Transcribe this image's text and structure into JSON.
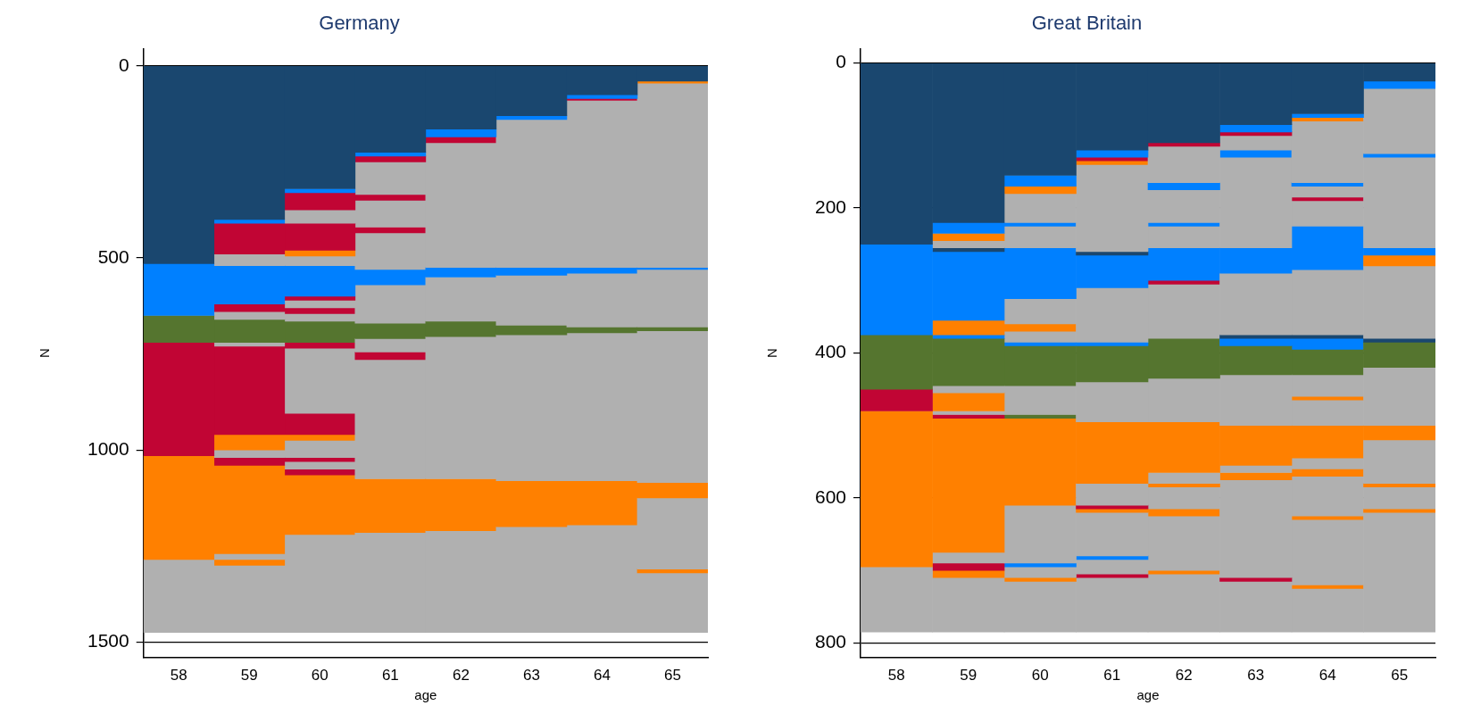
{
  "chart_data": [
    {
      "type": "bar",
      "title": "Germany",
      "xlabel": "age",
      "ylabel": "N",
      "categories": [
        "58",
        "59",
        "60",
        "61",
        "62",
        "63",
        "64",
        "65"
      ],
      "stacked": true,
      "ylim": [
        1540,
        -45
      ],
      "yticks": [
        0,
        500,
        1000,
        1500
      ],
      "grid": "y",
      "legend": false,
      "series": [
        {
          "values": [
            515,
            400,
            320,
            225,
            165,
            130,
            75,
            40
          ],
          "colors": [
            "#1a476f",
            "#1a476f",
            "#1a476f",
            "#1a476f",
            "#1a476f",
            "#1a476f",
            "#1a476f",
            "#1a476f"
          ]
        },
        {
          "values": [
            135,
            10,
            10,
            10,
            20,
            10,
            10,
            5
          ],
          "colors": [
            "#0080ff",
            "#0080ff",
            "#0080ff",
            "#0080ff",
            "#0080ff",
            "#0080ff",
            "#0080ff",
            "#ff8000"
          ]
        },
        {
          "values": [
            70,
            80,
            45,
            15,
            15,
            385,
            5,
            480
          ],
          "colors": [
            "#55752f",
            "#c10534",
            "#c10534",
            "#c10534",
            "#c10534",
            "#b0b0b0",
            "#c10534",
            "#b0b0b0"
          ]
        },
        {
          "values": [
            295,
            30,
            35,
            85,
            325,
            20,
            435,
            5
          ],
          "colors": [
            "#c10534",
            "#b0b0b0",
            "#b0b0b0",
            "#b0b0b0",
            "#b0b0b0",
            "#0080ff",
            "#b0b0b0",
            "#0080ff"
          ]
        },
        {
          "values": [
            270,
            100,
            70,
            15,
            25,
            130,
            15,
            150
          ],
          "colors": [
            "#ff8000",
            "#0080ff",
            "#c10534",
            "#c10534",
            "#0080ff",
            "#b0b0b0",
            "#0080ff",
            "#b0b0b0"
          ]
        },
        {
          "values": [
            190,
            20,
            15,
            70,
            115,
            25,
            140,
            10
          ],
          "colors": [
            "#b0b0b0",
            "#c10534",
            "#ff8000",
            "#b0b0b0",
            "#b0b0b0",
            "#55752f",
            "#b0b0b0",
            "#55752f"
          ]
        },
        {
          "values": [
            null,
            20,
            25,
            15,
            40,
            380,
            15,
            395
          ],
          "colors": [
            null,
            "#b0b0b0",
            "#b0b0b0",
            "#c10534",
            "#55752f",
            "#b0b0b0",
            "#55752f",
            "#b0b0b0"
          ]
        },
        {
          "values": [
            null,
            60,
            80,
            95,
            370,
            120,
            385,
            40
          ],
          "colors": [
            null,
            "#55752f",
            "#0080ff",
            "#b0b0b0",
            "#b0b0b0",
            "#ff8000",
            "#b0b0b0",
            "#ff8000"
          ]
        },
        {
          "values": [
            null,
            10,
            10,
            40,
            135,
            275,
            115,
            185
          ],
          "colors": [
            null,
            "#b0b0b0",
            "#c10534",
            "#0080ff",
            "#ff8000",
            "#b0b0b0",
            "#ff8000",
            "#b0b0b0"
          ]
        },
        {
          "values": [
            null,
            230,
            20,
            100,
            265,
            null,
            280,
            10
          ],
          "colors": [
            null,
            "#c10534",
            "#b0b0b0",
            "#b0b0b0",
            "#b0b0b0",
            null,
            "#b0b0b0",
            "#ff8000"
          ]
        },
        {
          "values": [
            null,
            40,
            15,
            40,
            null,
            null,
            null,
            155
          ],
          "colors": [
            null,
            "#ff8000",
            "#c10534",
            "#55752f",
            null,
            null,
            null,
            "#b0b0b0"
          ]
        },
        {
          "values": [
            null,
            20,
            20,
            35,
            null,
            null,
            null,
            null
          ],
          "colors": [
            null,
            "#b0b0b0",
            "#b0b0b0",
            "#b0b0b0",
            null,
            null,
            null,
            null
          ]
        },
        {
          "values": [
            null,
            20,
            55,
            20,
            null,
            null,
            null,
            null
          ],
          "colors": [
            null,
            "#c10534",
            "#55752f",
            "#c10534",
            null,
            null,
            null,
            null
          ]
        },
        {
          "values": [
            null,
            230,
            15,
            310,
            null,
            null,
            null,
            null
          ],
          "colors": [
            null,
            "#ff8000",
            "#c10534",
            "#b0b0b0",
            null,
            null,
            null,
            null
          ]
        },
        {
          "values": [
            null,
            15,
            170,
            140,
            null,
            null,
            null,
            null
          ],
          "colors": [
            null,
            "#b0b0b0",
            "#b0b0b0",
            "#ff8000",
            null,
            null,
            null,
            null
          ]
        },
        {
          "values": [
            null,
            15,
            55,
            260,
            null,
            null,
            null,
            null
          ],
          "colors": [
            null,
            "#ff8000",
            "#c10534",
            "#b0b0b0",
            null,
            null,
            null,
            null
          ]
        },
        {
          "values": [
            null,
            175,
            15,
            null,
            null,
            null,
            null,
            null
          ],
          "colors": [
            null,
            "#b0b0b0",
            "#ff8000",
            null,
            null,
            null,
            null,
            null
          ]
        },
        {
          "values": [
            null,
            null,
            45,
            null,
            null,
            null,
            null,
            null
          ],
          "colors": [
            null,
            null,
            "#b0b0b0",
            null,
            null,
            null,
            null,
            null
          ]
        },
        {
          "values": [
            null,
            null,
            10,
            null,
            null,
            null,
            null,
            null
          ],
          "colors": [
            null,
            null,
            "#c10534",
            null,
            null,
            null,
            null,
            null
          ]
        },
        {
          "values": [
            null,
            null,
            20,
            null,
            null,
            null,
            null,
            null
          ],
          "colors": [
            null,
            null,
            "#b0b0b0",
            null,
            null,
            null,
            null,
            null
          ]
        },
        {
          "values": [
            null,
            null,
            15,
            null,
            null,
            null,
            null,
            null
          ],
          "colors": [
            null,
            null,
            "#c10534",
            null,
            null,
            null,
            null,
            null
          ]
        },
        {
          "values": [
            null,
            null,
            155,
            null,
            null,
            null,
            null,
            null
          ],
          "colors": [
            null,
            null,
            "#ff8000",
            null,
            null,
            null,
            null,
            null
          ]
        },
        {
          "values": [
            null,
            null,
            255,
            null,
            null,
            null,
            null,
            null
          ],
          "colors": [
            null,
            null,
            "#b0b0b0",
            null,
            null,
            null,
            null,
            null
          ]
        }
      ]
    },
    {
      "type": "bar",
      "title": "Great Britain",
      "xlabel": "age",
      "ylabel": "N",
      "categories": [
        "58",
        "59",
        "60",
        "61",
        "62",
        "63",
        "64",
        "65"
      ],
      "stacked": true,
      "ylim": [
        820,
        -20
      ],
      "yticks": [
        0,
        200,
        400,
        600,
        800
      ],
      "grid": "y",
      "legend": false,
      "series": [
        {
          "values": [
            250,
            220,
            155,
            120,
            110,
            85,
            70,
            25
          ],
          "colors": [
            "#1a476f",
            "#1a476f",
            "#1a476f",
            "#1a476f",
            "#1a476f",
            "#1a476f",
            "#1a476f",
            "#1a476f"
          ]
        },
        {
          "values": [
            125,
            15,
            15,
            10,
            5,
            10,
            5,
            10
          ],
          "colors": [
            "#0080ff",
            "#0080ff",
            "#0080ff",
            "#0080ff",
            "#c10534",
            "#0080ff",
            "#0080ff",
            "#0080ff"
          ]
        },
        {
          "values": [
            75,
            10,
            10,
            5,
            50,
            5,
            5,
            90
          ],
          "colors": [
            "#55752f",
            "#ff8000",
            "#ff8000",
            "#c10534",
            "#b0b0b0",
            "#c10534",
            "#ff8000",
            "#b0b0b0"
          ]
        },
        {
          "values": [
            30,
            10,
            40,
            5,
            10,
            20,
            85,
            5
          ],
          "colors": [
            "#c10534",
            "#b0b0b0",
            "#b0b0b0",
            "#ff8000",
            "#0080ff",
            "#b0b0b0",
            "#b0b0b0",
            "#0080ff"
          ]
        },
        {
          "values": [
            215,
            5,
            5,
            120,
            45,
            10,
            5,
            125
          ],
          "colors": [
            "#ff8000",
            "#1a476f",
            "#0080ff",
            "#b0b0b0",
            "#b0b0b0",
            "#0080ff",
            "#0080ff",
            "#b0b0b0"
          ]
        },
        {
          "values": [
            90,
            95,
            30,
            5,
            5,
            125,
            15,
            10
          ],
          "colors": [
            "#b0b0b0",
            "#0080ff",
            "#b0b0b0",
            "#1a476f",
            "#0080ff",
            "#b0b0b0",
            "#b0b0b0",
            "#0080ff"
          ]
        },
        {
          "values": [
            null,
            20,
            70,
            45,
            30,
            35,
            5,
            15
          ],
          "colors": [
            null,
            "#ff8000",
            "#0080ff",
            "#0080ff",
            "#b0b0b0",
            "#0080ff",
            "#c10534",
            "#ff8000"
          ]
        },
        {
          "values": [
            null,
            5,
            35,
            75,
            45,
            85,
            35,
            100
          ],
          "colors": [
            null,
            "#0080ff",
            "#b0b0b0",
            "#b0b0b0",
            "#0080ff",
            "#b0b0b0",
            "#b0b0b0",
            "#b0b0b0"
          ]
        },
        {
          "values": [
            null,
            65,
            10,
            5,
            5,
            5,
            60,
            5
          ],
          "colors": [
            null,
            "#55752f",
            "#ff8000",
            "#0080ff",
            "#c10534",
            "#1a476f",
            "#0080ff",
            "#1a476f"
          ]
        },
        {
          "values": [
            null,
            10,
            15,
            50,
            75,
            10,
            90,
            35
          ],
          "colors": [
            null,
            "#b0b0b0",
            "#b0b0b0",
            "#55752f",
            "#b0b0b0",
            "#0080ff",
            "#b0b0b0",
            "#55752f"
          ]
        },
        {
          "values": [
            null,
            25,
            5,
            55,
            55,
            40,
            5,
            80
          ],
          "colors": [
            null,
            "#ff8000",
            "#0080ff",
            "#b0b0b0",
            "#55752f",
            "#55752f",
            "#1a476f",
            "#b0b0b0"
          ]
        },
        {
          "values": [
            null,
            5,
            55,
            85,
            60,
            70,
            15,
            20
          ],
          "colors": [
            null,
            "#b0b0b0",
            "#55752f",
            "#ff8000",
            "#b0b0b0",
            "#b0b0b0",
            "#0080ff",
            "#ff8000"
          ]
        },
        {
          "values": [
            null,
            5,
            40,
            30,
            70,
            55,
            35,
            60
          ],
          "colors": [
            null,
            "#c10534",
            "#b0b0b0",
            "#b0b0b0",
            "#ff8000",
            "#ff8000",
            "#55752f",
            "#b0b0b0"
          ]
        },
        {
          "values": [
            null,
            185,
            5,
            5,
            15,
            10,
            30,
            5
          ],
          "colors": [
            null,
            "#ff8000",
            "#55752f",
            "#c10534",
            "#b0b0b0",
            "#b0b0b0",
            "#b0b0b0",
            "#ff8000"
          ]
        },
        {
          "values": [
            null,
            15,
            120,
            5,
            5,
            10,
            5,
            30
          ],
          "colors": [
            null,
            "#b0b0b0",
            "#ff8000",
            "#ff8000",
            "#ff8000",
            "#ff8000",
            "#ff8000",
            "#b0b0b0"
          ]
        },
        {
          "values": [
            null,
            10,
            80,
            60,
            30,
            135,
            35,
            5
          ],
          "colors": [
            null,
            "#c10534",
            "#b0b0b0",
            "#b0b0b0",
            "#b0b0b0",
            "#b0b0b0",
            "#b0b0b0",
            "#ff8000"
          ]
        },
        {
          "values": [
            null,
            10,
            5,
            5,
            10,
            5,
            45,
            165
          ],
          "colors": [
            null,
            "#ff8000",
            "#0080ff",
            "#0080ff",
            "#ff8000",
            "#c10534",
            "#ff8000",
            "#b0b0b0"
          ]
        },
        {
          "values": [
            null,
            75,
            15,
            20,
            75,
            70,
            15,
            null
          ],
          "colors": [
            null,
            "#b0b0b0",
            "#b0b0b0",
            "#b0b0b0",
            "#b0b0b0",
            "#b0b0b0",
            "#b0b0b0",
            null
          ]
        },
        {
          "values": [
            null,
            null,
            5,
            5,
            5,
            null,
            10,
            null
          ],
          "colors": [
            null,
            null,
            "#ff8000",
            "#c10534",
            "#ff8000",
            null,
            "#ff8000",
            null
          ]
        },
        {
          "values": [
            null,
            null,
            70,
            75,
            80,
            null,
            55,
            null
          ],
          "colors": [
            null,
            null,
            "#b0b0b0",
            "#b0b0b0",
            "#b0b0b0",
            null,
            "#b0b0b0",
            null
          ]
        },
        {
          "values": [
            null,
            null,
            null,
            null,
            null,
            null,
            5,
            null
          ],
          "colors": [
            null,
            null,
            null,
            null,
            null,
            null,
            "#ff8000",
            null
          ]
        },
        {
          "values": [
            null,
            null,
            null,
            null,
            null,
            null,
            90,
            null
          ],
          "colors": [
            null,
            null,
            null,
            null,
            null,
            null,
            "#b0b0b0",
            null
          ]
        },
        {
          "values": [
            null,
            null,
            null,
            null,
            null,
            null,
            5,
            null
          ],
          "colors": [
            null,
            null,
            null,
            null,
            null,
            null,
            "#ff8000",
            null
          ]
        },
        {
          "values": [
            null,
            null,
            null,
            null,
            null,
            null,
            60,
            null
          ],
          "colors": [
            null,
            null,
            null,
            null,
            null,
            null,
            "#b0b0b0",
            null
          ]
        }
      ]
    }
  ]
}
